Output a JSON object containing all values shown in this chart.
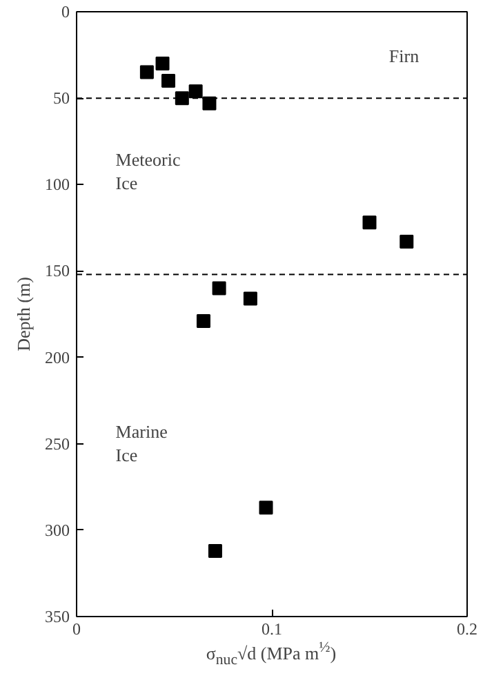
{
  "chart_data": {
    "type": "scatter",
    "xlabel": "σ$_{nuc}$√d (MPa m$^{½}$)",
    "ylabel": "Depth (m)",
    "x": [
      0.036,
      0.044,
      0.047,
      0.054,
      0.061,
      0.068,
      0.15,
      0.169,
      0.073,
      0.089,
      0.065,
      0.097,
      0.071
    ],
    "series": [
      {
        "color": "#000000",
        "values": [
          35,
          30,
          40,
          50,
          46,
          53,
          122,
          133,
          160,
          166,
          179,
          287,
          312
        ]
      }
    ],
    "xlim": [
      0,
      0.2
    ],
    "xticks": [
      0,
      0.1,
      0.2
    ],
    "ylim": [
      350,
      0
    ],
    "yticks": [
      0,
      50,
      100,
      150,
      200,
      250,
      300,
      350
    ],
    "marker": "square",
    "grid": false,
    "ref_lines": [
      {
        "axis": "y",
        "value": 50,
        "line_style": "dashed",
        "color": "#000000"
      },
      {
        "axis": "y",
        "value": 152,
        "line_style": "dashed",
        "color": "#000000"
      }
    ],
    "annotations": [
      "Firn",
      "Meteoric\nIce",
      "Marine\nIce"
    ]
  }
}
